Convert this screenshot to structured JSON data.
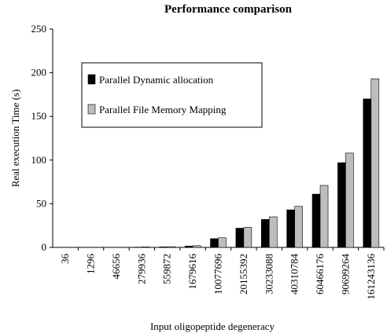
{
  "chart_data": {
    "type": "bar",
    "title": "Performance comparison",
    "x_label": "Input oligopeptide degeneracy",
    "y_label": "Real execution Time (s)",
    "categories": [
      "36",
      "1296",
      "46656",
      "279936",
      "559872",
      "1679616",
      "10077696",
      "20155392",
      "30233088",
      "40310784",
      "60466176",
      "90699264",
      "161243136"
    ],
    "series": [
      {
        "name": "Parallel Dynamic allocation",
        "color": "#000000",
        "values": [
          0,
          0,
          0,
          0.3,
          0.6,
          1.5,
          10,
          22,
          32,
          43,
          61,
          97,
          170
        ]
      },
      {
        "name": "Parallel File Memory Mapping",
        "color": "#bdbdbd",
        "values": [
          0,
          0,
          0,
          0.5,
          0.8,
          2,
          11,
          23,
          35,
          47,
          71,
          108,
          193
        ]
      }
    ],
    "ylim": [
      0,
      250
    ],
    "yticks": [
      0,
      50,
      100,
      150,
      200,
      250
    ],
    "legend": "upper left"
  }
}
